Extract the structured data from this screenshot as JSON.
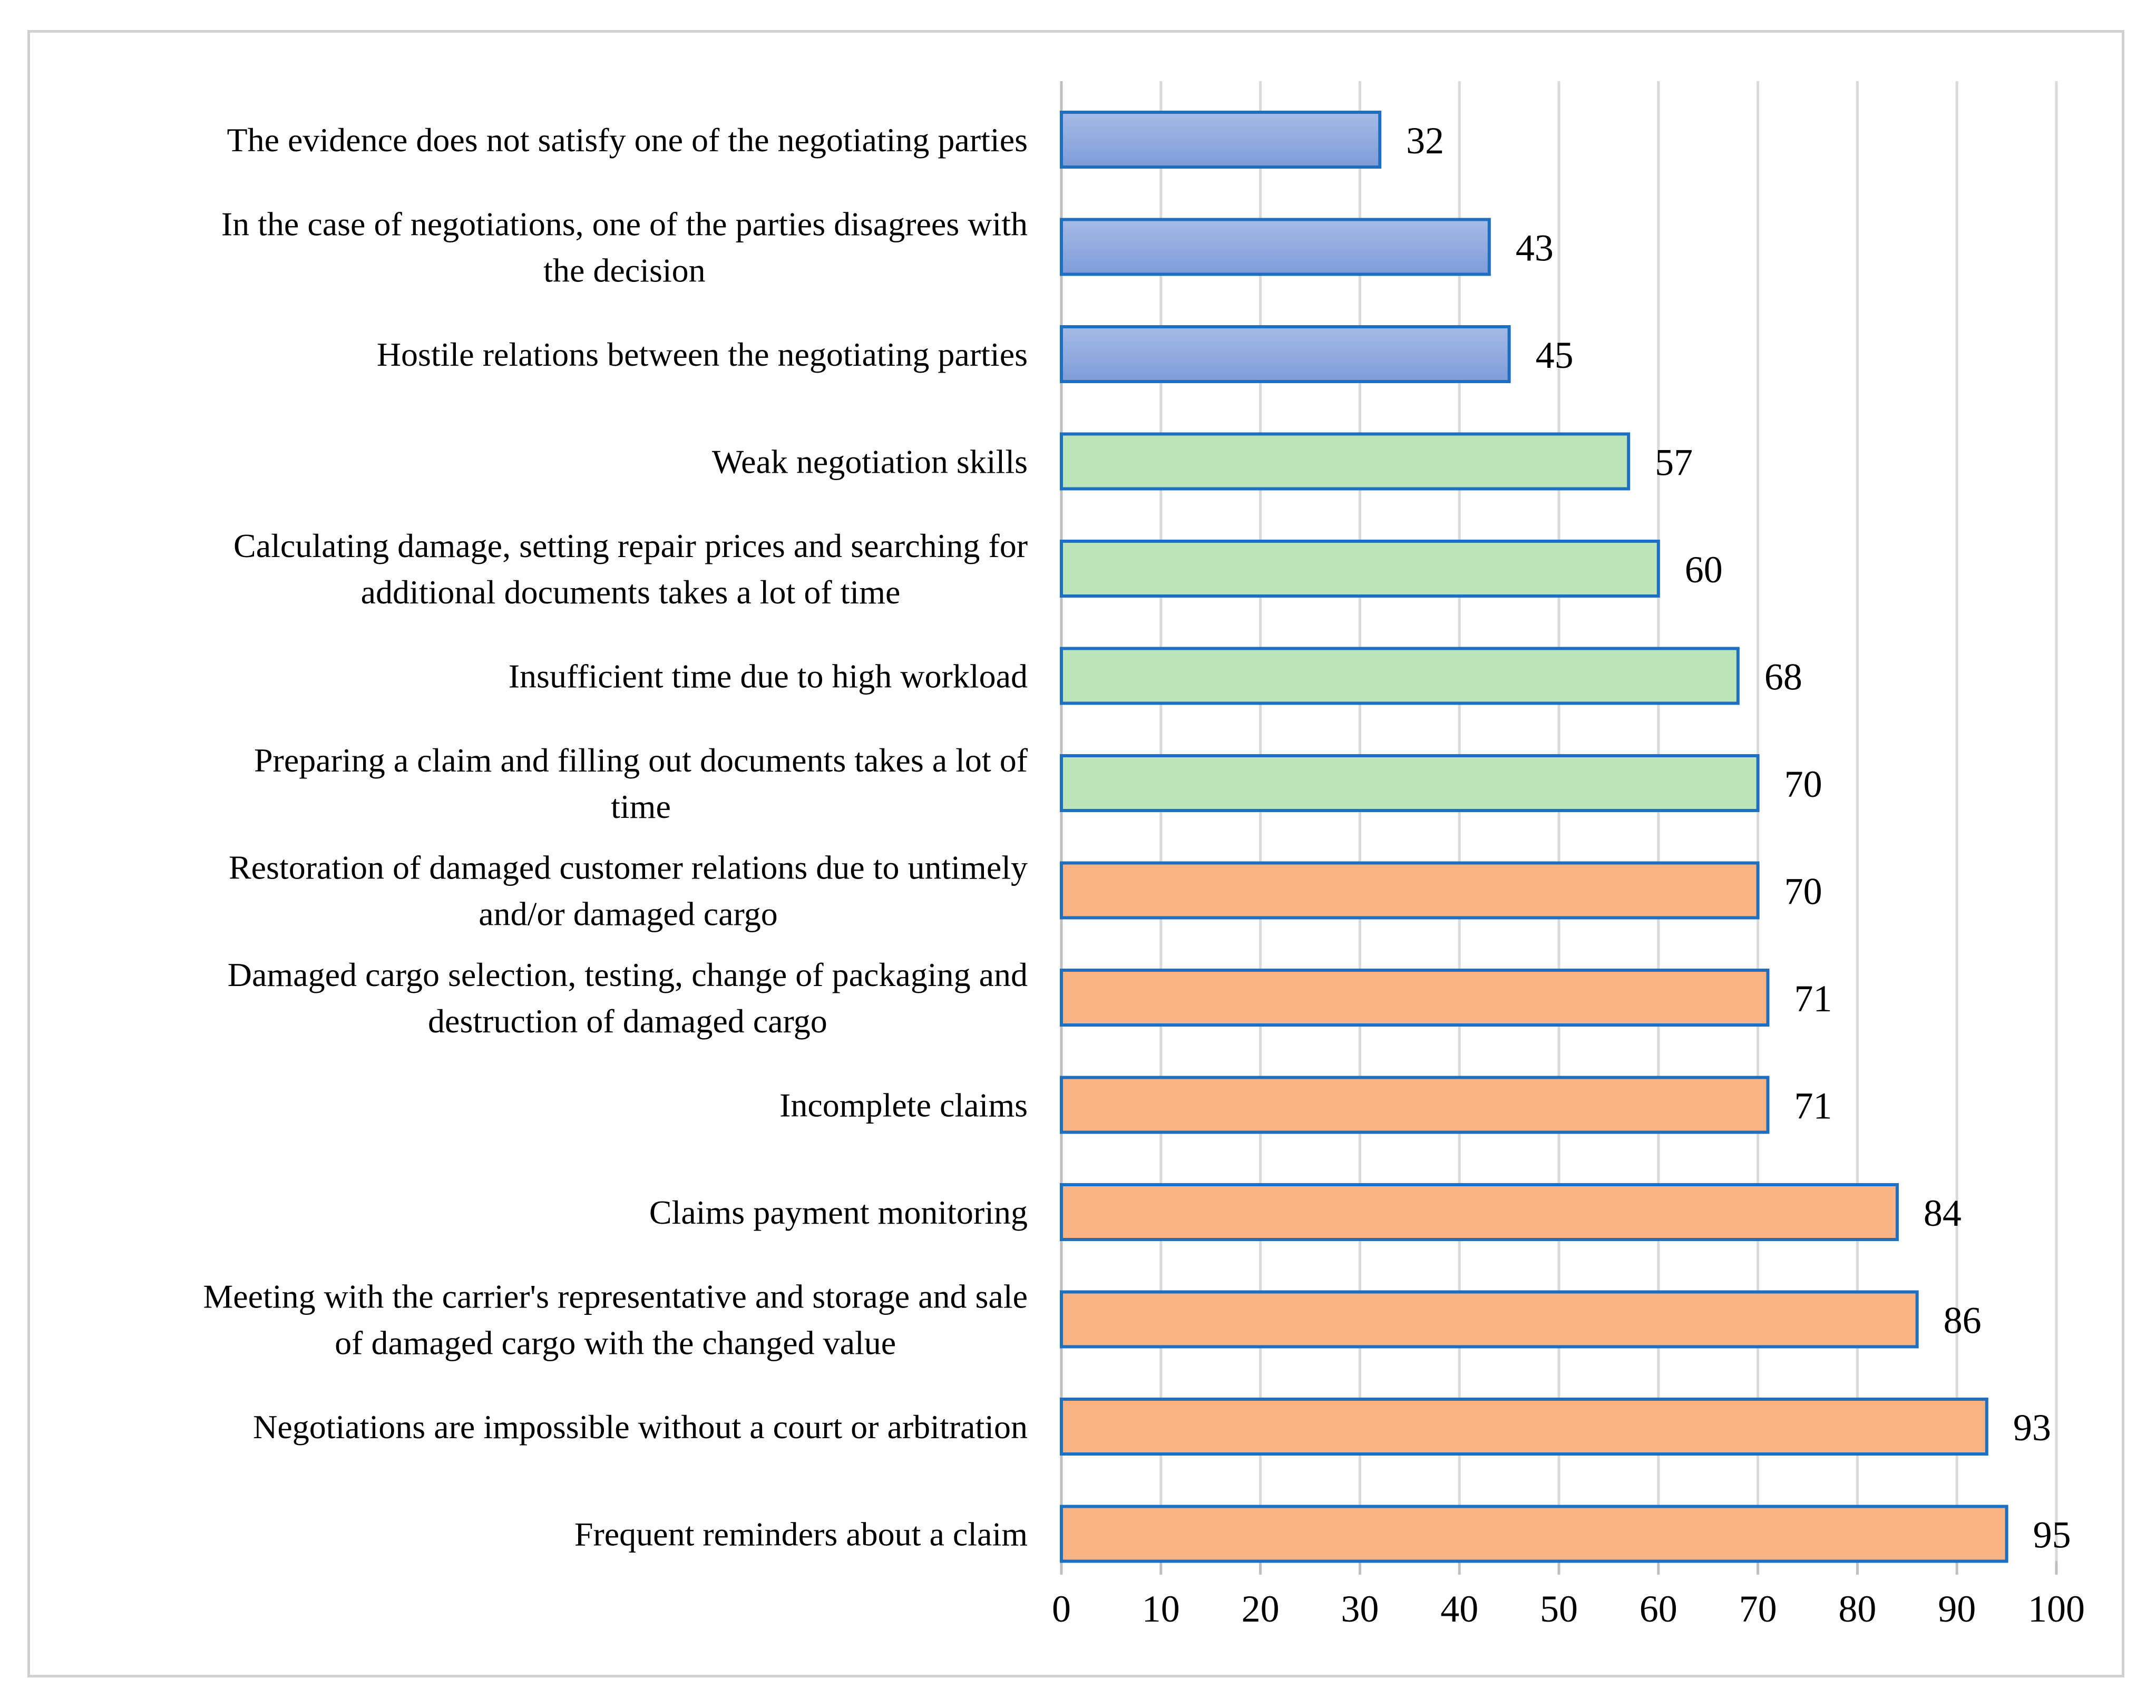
{
  "chart_data": {
    "type": "bar",
    "orientation": "horizontal",
    "title": "",
    "xlabel": "",
    "ylabel": "",
    "xlim": [
      0,
      100
    ],
    "x_ticks": [
      "0",
      "10",
      "20",
      "30",
      "40",
      "50",
      "60",
      "70",
      "80",
      "90",
      "100"
    ],
    "grid": "vertical",
    "legend": "none",
    "colors": {
      "blue": "#a5bbe6",
      "blue_dark": "#7f9cd9",
      "green": "#bde3b8",
      "orange": "#fbb385",
      "bar_border": "#1f6fc0",
      "grid": "#d9d9d9",
      "axis": "#bfbfbf"
    },
    "bars": [
      {
        "lines": [
          "The evidence does not satisfy one of the negotiating parties"
        ],
        "value": 32,
        "label": "32",
        "group": "blue"
      },
      {
        "lines": [
          "In the case of negotiations, one of the parties disagrees with",
          "the decision"
        ],
        "value": 43,
        "label": "43",
        "group": "blue"
      },
      {
        "lines": [
          "Hostile relations between the negotiating parties"
        ],
        "value": 45,
        "label": "45",
        "group": "blue"
      },
      {
        "lines": [
          "Weak negotiation skills"
        ],
        "value": 57,
        "label": "57",
        "group": "green"
      },
      {
        "lines": [
          "Calculating damage, setting repair prices and searching for",
          "additional documents takes a lot of time"
        ],
        "value": 60,
        "label": "60",
        "group": "green"
      },
      {
        "lines": [
          "Insufficient time due to high workload"
        ],
        "value": 68,
        "label": "68",
        "group": "green"
      },
      {
        "lines": [
          "Preparing a claim and filling out documents takes a lot of",
          "time"
        ],
        "value": 70,
        "label": "70",
        "group": "green"
      },
      {
        "lines": [
          "Restoration of damaged customer relations due to untimely",
          "and/or damaged cargo"
        ],
        "value": 70,
        "label": "70",
        "group": "orange"
      },
      {
        "lines": [
          "Damaged cargo selection, testing, change of packaging and",
          "destruction of damaged cargo"
        ],
        "value": 71,
        "label": "71",
        "group": "orange"
      },
      {
        "lines": [
          "Incomplete claims"
        ],
        "value": 71,
        "label": "71",
        "group": "orange"
      },
      {
        "lines": [
          "Claims payment monitoring"
        ],
        "value": 84,
        "label": "84",
        "group": "orange"
      },
      {
        "lines": [
          "Meeting with the carrier's representative and storage and sale",
          "of damaged cargo with the changed value"
        ],
        "value": 86,
        "label": "86",
        "group": "orange"
      },
      {
        "lines": [
          "Negotiations are impossible without a court or arbitration"
        ],
        "value": 93,
        "label": "93",
        "group": "orange"
      },
      {
        "lines": [
          "Frequent reminders about a claim"
        ],
        "value": 95,
        "label": "95",
        "group": "orange"
      }
    ]
  }
}
